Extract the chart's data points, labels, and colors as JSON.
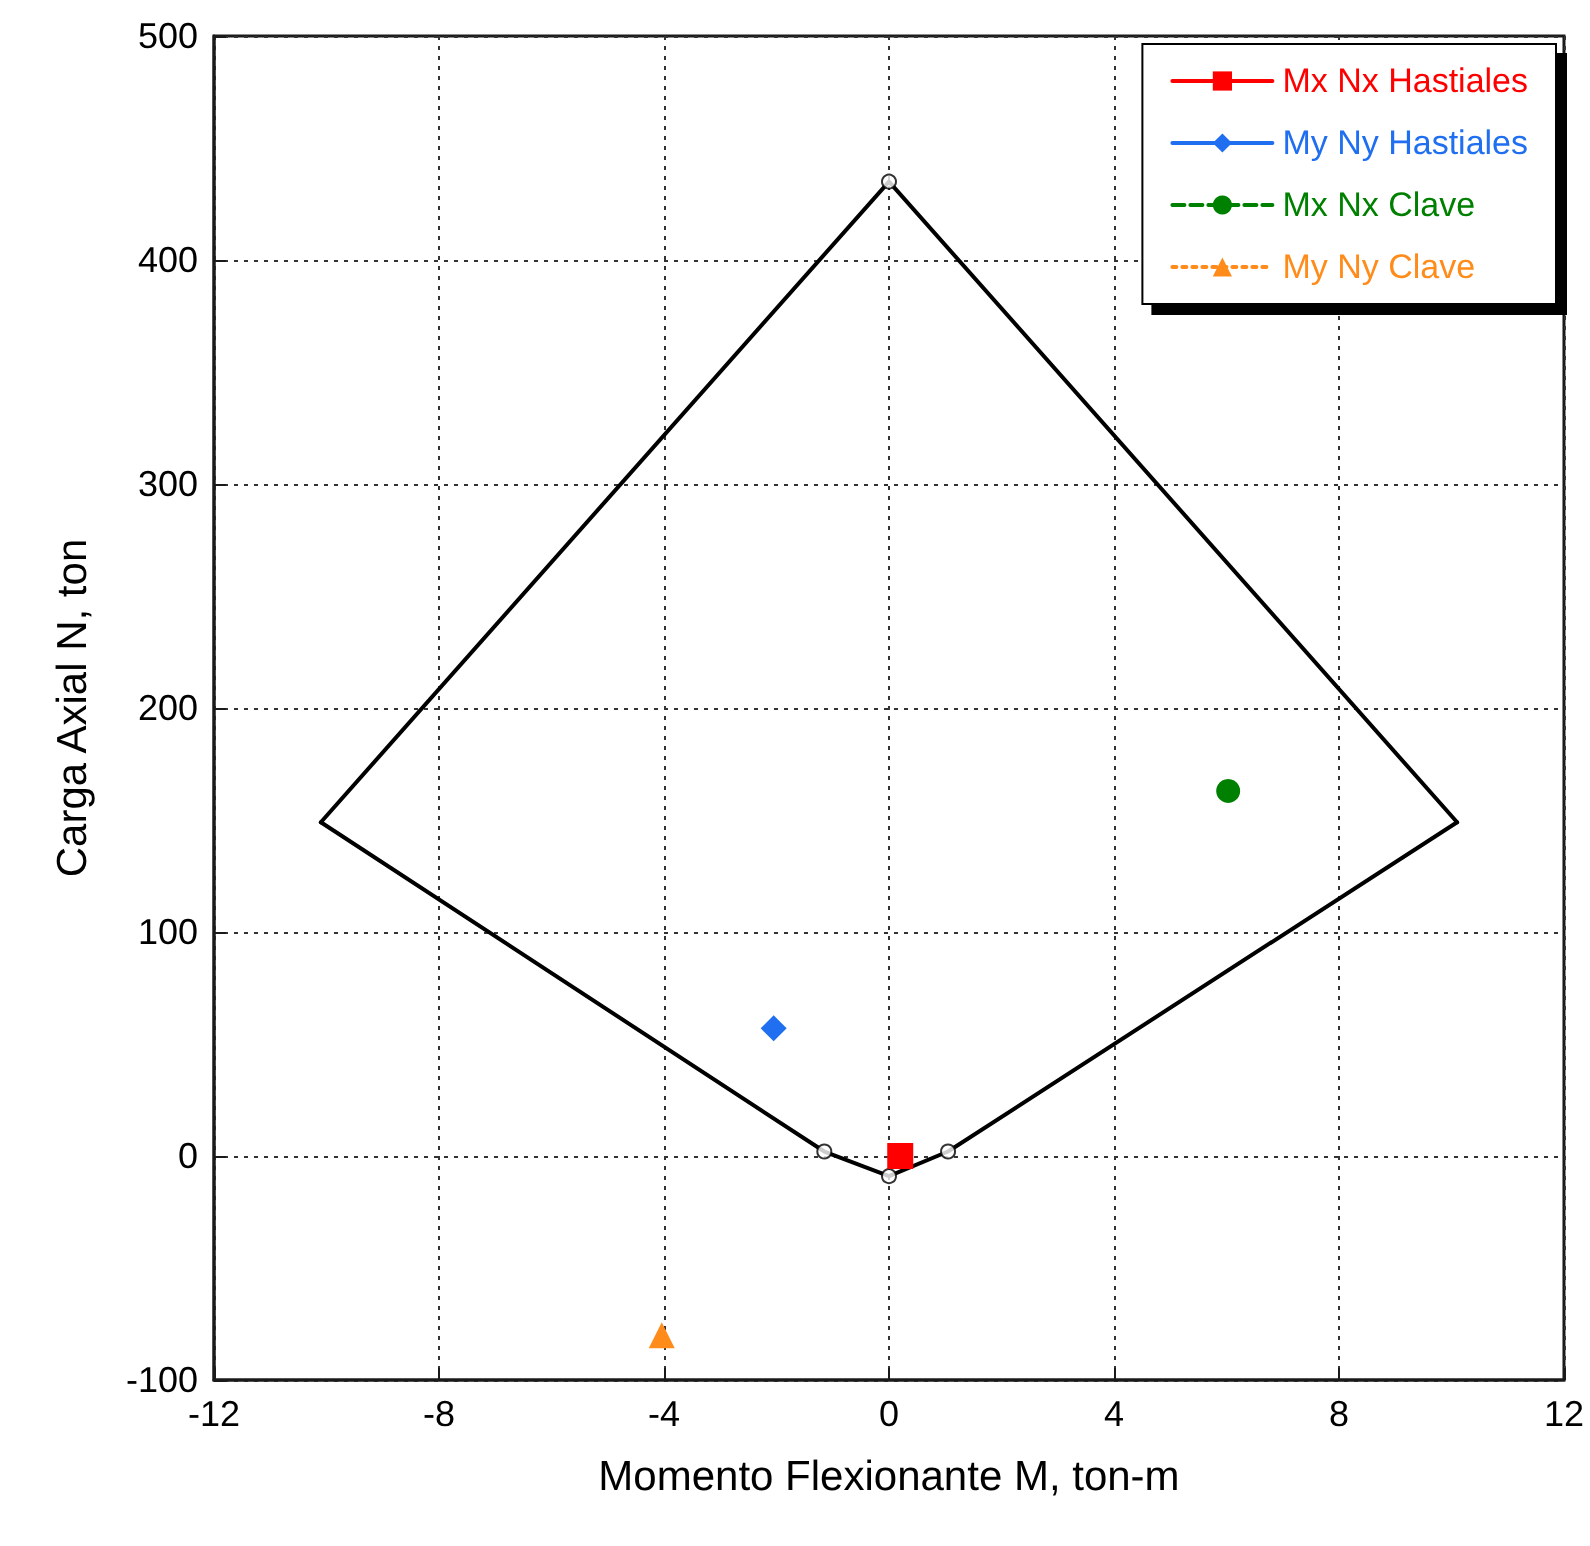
{
  "chart_data": {
    "type": "line",
    "xlabel": "Momento Flexionante M, ton-m",
    "ylabel": "Carga Axial N, ton",
    "xlim": [
      -12,
      12
    ],
    "xticks": [
      -12,
      -8,
      -4,
      0,
      4,
      8,
      12
    ],
    "ylim": [
      -100,
      500
    ],
    "yticks": [
      -100,
      0,
      100,
      200,
      300,
      400,
      500
    ],
    "grid": true,
    "legend": "top right",
    "series": [
      {
        "color": "#000000",
        "marker": "none",
        "line_style": "solid",
        "x": [
          -10.1,
          0,
          10.1
        ],
        "values": [
          149,
          435,
          149
        ]
      },
      {
        "color": "#000000",
        "marker": "none",
        "line_style": "solid",
        "x": [
          -10.1,
          -1.15,
          0,
          1.05,
          10.1
        ],
        "values": [
          149,
          2,
          -9,
          2,
          149
        ]
      },
      {
        "type": "scatter",
        "color": "#000000",
        "marker": "circle",
        "x": [
          0,
          1.05,
          0,
          -1.15
        ],
        "values": [
          435,
          2,
          -9,
          2
        ]
      },
      {
        "name": "Mx Nx Hastiales",
        "color": "#ff0000",
        "marker": "square",
        "line_style": "solid",
        "x": [
          0.2
        ],
        "values": [
          0
        ]
      },
      {
        "name": "My Ny Hastiales",
        "color": "#1f6ff0",
        "marker": "diamond",
        "line_style": "solid",
        "x": [
          -2.05
        ],
        "values": [
          57
        ]
      },
      {
        "name": "Mx Nx Clave",
        "color": "#008000",
        "marker": "circle",
        "line_style": "dashed",
        "x": [
          6.03
        ],
        "values": [
          163
        ]
      },
      {
        "name": "My Ny Clave",
        "color": "#ff8c1a",
        "marker": "triangle",
        "line_style": "dotted",
        "x": [
          -4.04
        ],
        "values": [
          -80
        ]
      }
    ]
  }
}
